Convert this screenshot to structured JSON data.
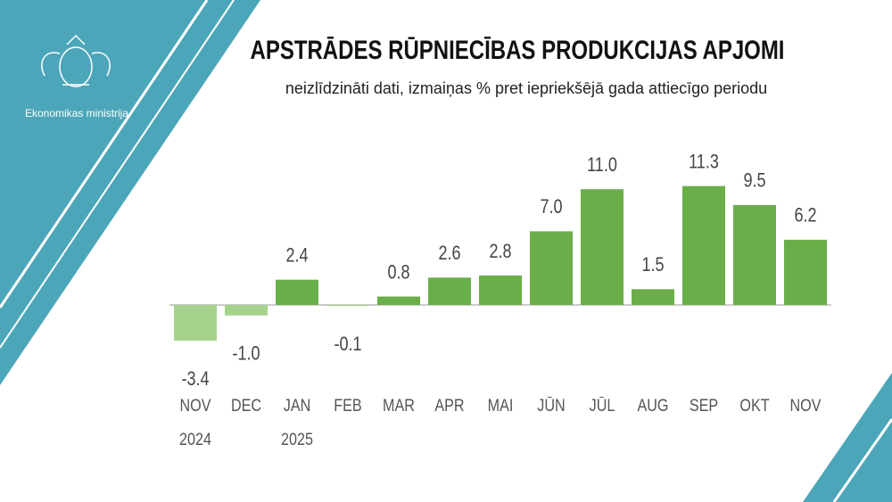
{
  "brand": "Ekonomikas ministrija",
  "chart_data": {
    "type": "bar",
    "title": "APSTRĀDES RŪPNIECĪBAS PRODUKCIJAS APJOMI",
    "subtitle": "neizlīdzināti dati, izmaiņas % pret iepriekšējā gada attiecīgo periodu",
    "categories": [
      "NOV 2024",
      "DEC",
      "JAN 2025",
      "FEB",
      "MAR",
      "APR",
      "MAI",
      "JŪN",
      "JŪL",
      "AUG",
      "SEP",
      "OKT",
      "NOV"
    ],
    "values": [
      -3.4,
      -1.0,
      2.4,
      -0.1,
      0.8,
      2.6,
      2.8,
      7.0,
      11.0,
      1.5,
      11.3,
      9.5,
      6.2
    ],
    "value_labels": [
      "-3.4",
      "-1.0",
      "2.4",
      "-0.1",
      "0.8",
      "2.6",
      "2.8",
      "7.0",
      "11.0",
      "1.5",
      "11.3",
      "9.5",
      "6.2"
    ],
    "color": "#6aae4a",
    "negative_color": "#a6d38b"
  }
}
